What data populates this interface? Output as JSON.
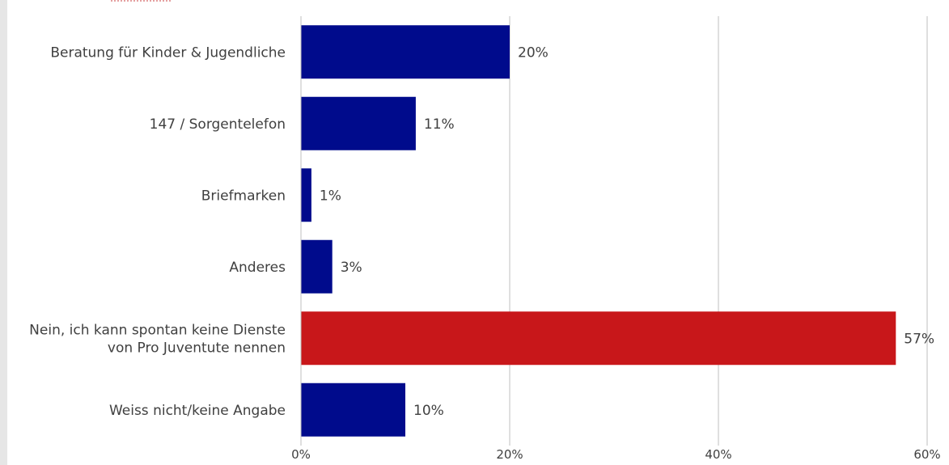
{
  "chart_data": {
    "type": "bar",
    "orientation": "horizontal",
    "categories": [
      [
        "Beratung für Kinder & Jugendliche"
      ],
      [
        "147 / Sorgentelefon"
      ],
      [
        "Briefmarken"
      ],
      [
        "Anderes"
      ],
      [
        "Nein, ich kann spontan keine Dienste",
        "von Pro Juventute nennen"
      ],
      [
        "Weiss nicht/keine Angabe"
      ]
    ],
    "values": [
      20,
      11,
      1,
      3,
      57,
      10
    ],
    "value_labels": [
      "20%",
      "11%",
      "1%",
      "3%",
      "57%",
      "10%"
    ],
    "colors": [
      "#000b8c",
      "#000b8c",
      "#000b8c",
      "#000b8c",
      "#c8171a",
      "#000b8c"
    ],
    "xlim": [
      0,
      60
    ],
    "xticks": [
      0,
      20,
      40,
      60
    ],
    "xtick_labels": [
      "0%",
      "20%",
      "40%",
      "60%"
    ],
    "grid": true,
    "title": "",
    "xlabel": "",
    "ylabel": ""
  }
}
